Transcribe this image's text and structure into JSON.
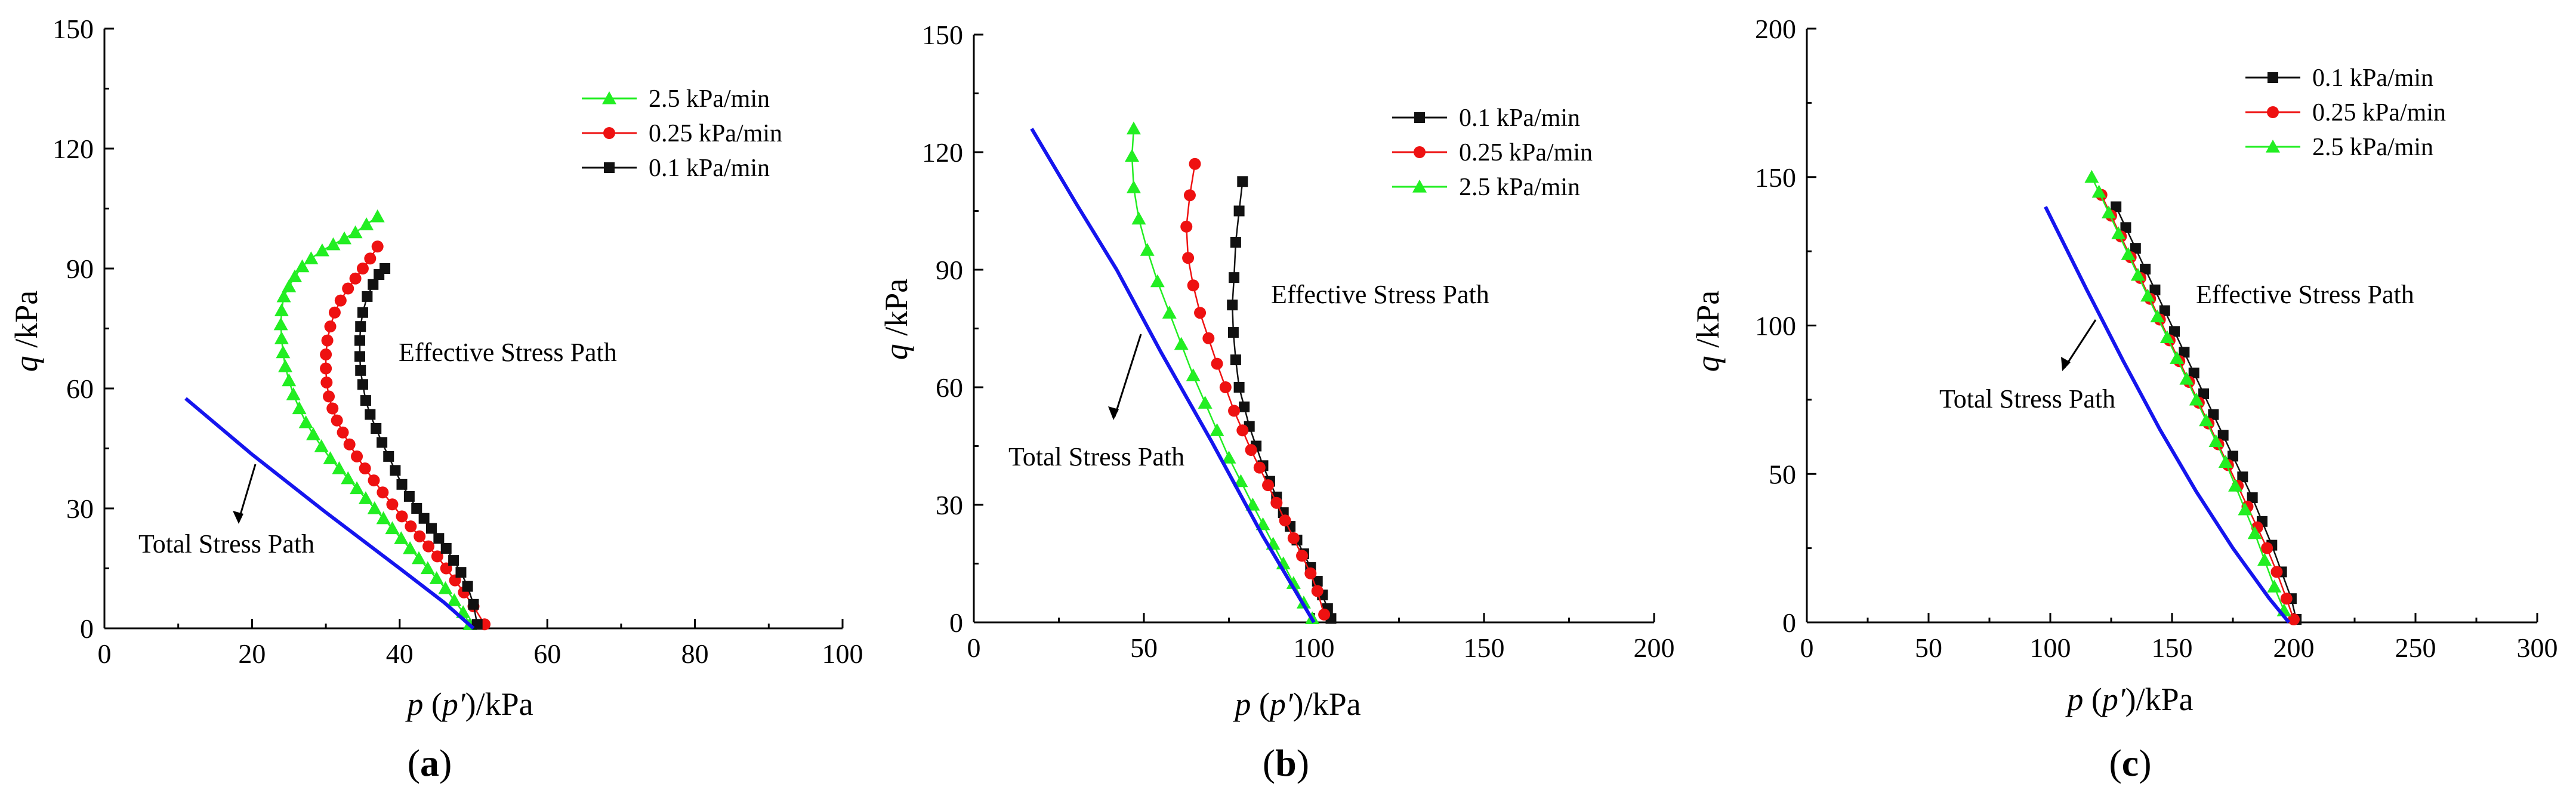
{
  "chart_data": [
    {
      "type": "line",
      "panel_label": "(a)",
      "panel_label_parts": [
        "(",
        "a",
        ")"
      ],
      "xlabel": "p (p′)/kPa",
      "xlabel_parts": {
        "var": "p",
        "mid": " (",
        "var2": "p′",
        "unit": ")/kPa"
      },
      "ylabel": "q /kPa",
      "ylabel_parts": {
        "var": "q",
        "unit": " /kPa"
      },
      "xlim": [
        0,
        100
      ],
      "ylim": [
        0,
        150
      ],
      "xticks": [
        0,
        20,
        40,
        60,
        80,
        100
      ],
      "yticks": [
        0,
        30,
        60,
        90,
        120,
        150
      ],
      "xtick_labels": [
        "0",
        "20",
        "40",
        "60",
        "80",
        "100"
      ],
      "ytick_labels": [
        "0",
        "30",
        "60",
        "90",
        "120",
        "150"
      ],
      "legend_position": "top-right",
      "annotations": [
        "Effective Stress Path",
        "Total Stress Path"
      ],
      "series": [
        {
          "name": "2.5 kPa/min",
          "color": "#22ee22",
          "marker": "triangle",
          "x": [
            37,
            35.5,
            34,
            32.5,
            31,
            29.5,
            28,
            26.8,
            25.8,
            25,
            24.3,
            24,
            23.9,
            24,
            24.2,
            24.5,
            25,
            25.6,
            26.4,
            27.3,
            28.3,
            29.4,
            30.6,
            31.8,
            33,
            34.2,
            35.4,
            36.6,
            37.8,
            39,
            40.2,
            41.4,
            42.6,
            43.8,
            45,
            46.2,
            47.4,
            48.6,
            49.5
          ],
          "y": [
            103,
            101,
            99,
            97.5,
            96,
            94.5,
            92.5,
            90.5,
            88,
            85.5,
            83,
            79.5,
            76,
            72.5,
            69,
            65.5,
            62,
            58.5,
            55,
            51.5,
            48.5,
            45.5,
            42.5,
            40,
            37.5,
            35,
            32.5,
            30,
            27.5,
            25,
            22.5,
            20,
            17.5,
            15,
            12.5,
            10,
            7,
            4,
            1
          ]
        },
        {
          "name": "0.25 kPa/min",
          "color": "#ee1111",
          "marker": "circle",
          "x": [
            37,
            36,
            35,
            34,
            33,
            32,
            31.2,
            30.6,
            30.2,
            30,
            30,
            30.1,
            30.4,
            30.9,
            31.5,
            32.3,
            33.2,
            34.2,
            35.3,
            36.5,
            37.7,
            39,
            40.3,
            41.5,
            42.7,
            43.9,
            45.1,
            46.3,
            47.5,
            48.7,
            50,
            51.5
          ],
          "y": [
            95.5,
            92.5,
            90,
            87.5,
            85,
            82,
            79,
            75.5,
            72,
            68.5,
            65,
            61.5,
            58,
            55,
            52,
            49,
            46,
            43,
            40,
            37,
            34,
            31,
            28,
            25.5,
            23,
            20.5,
            18,
            15,
            12,
            9,
            5.5,
            1
          ]
        },
        {
          "name": "0.1 kPa/min",
          "color": "#111111",
          "marker": "square",
          "x": [
            38,
            37.2,
            36.4,
            35.6,
            35,
            34.7,
            34.6,
            34.6,
            34.7,
            35,
            35.4,
            36,
            36.8,
            37.6,
            38.5,
            39.4,
            40.3,
            41.3,
            42.3,
            43.3,
            44.3,
            45.3,
            46.3,
            47.3,
            48.3,
            49.2,
            50,
            50.5
          ],
          "y": [
            90,
            88.5,
            86,
            83,
            79,
            75.5,
            72,
            68,
            64.5,
            61,
            57,
            53.5,
            50,
            46.5,
            43,
            39.5,
            36,
            33,
            30,
            27.5,
            25,
            22.5,
            20,
            17,
            14,
            10.5,
            6,
            1
          ]
        },
        {
          "name": "Total Stress Path",
          "color": "#1515ee",
          "marker": "none",
          "x": [
            11,
            20,
            30,
            40,
            46,
            50
          ],
          "y": [
            57.5,
            43.5,
            29,
            15,
            6.5,
            0
          ]
        }
      ]
    },
    {
      "type": "line",
      "panel_label": "(b)",
      "panel_label_parts": [
        "(",
        "b",
        ")"
      ],
      "xlabel": "p (p′)/kPa",
      "xlabel_parts": {
        "var": "p",
        "mid": " (",
        "var2": "p′",
        "unit": ")/kPa"
      },
      "ylabel": "q /kPa",
      "ylabel_parts": {
        "var": "q",
        "unit": " /kPa"
      },
      "xlim": [
        0,
        200
      ],
      "ylim": [
        0,
        150
      ],
      "xticks": [
        0,
        50,
        100,
        150,
        200
      ],
      "yticks": [
        0,
        30,
        60,
        90,
        120,
        150
      ],
      "xtick_labels": [
        "0",
        "50",
        "100",
        "150",
        "200"
      ],
      "ytick_labels": [
        "0",
        "30",
        "60",
        "90",
        "120",
        "150"
      ],
      "legend_position": "top-right",
      "annotations": [
        "Effective Stress Path",
        "Total Stress Path"
      ],
      "series": [
        {
          "name": "0.1  kPa/min",
          "color": "#111111",
          "marker": "square",
          "x": [
            79,
            78,
            77,
            76.5,
            76,
            76.3,
            77,
            78,
            79.5,
            81,
            83,
            85,
            87,
            89,
            91,
            93,
            95,
            97,
            99,
            101,
            102.5,
            104,
            105
          ],
          "y": [
            112.5,
            105,
            97,
            88,
            81,
            74,
            67,
            60,
            55,
            50,
            45,
            40,
            36,
            32,
            28,
            24.5,
            21,
            17.5,
            14,
            10.5,
            7,
            3.5,
            1
          ]
        },
        {
          "name": "0.25  kPa/min",
          "color": "#ee1111",
          "marker": "circle",
          "x": [
            65,
            63.5,
            62.5,
            63,
            64.5,
            66.5,
            69,
            71.5,
            74,
            76.5,
            79,
            81.5,
            84,
            86.5,
            89,
            91.5,
            94,
            96.5,
            99,
            101,
            103
          ],
          "y": [
            117,
            109,
            101,
            93,
            86,
            79,
            72.5,
            66,
            60,
            54,
            49,
            44,
            39.5,
            35,
            30.5,
            26,
            21.5,
            17,
            12.5,
            8,
            2
          ]
        },
        {
          "name": "2.5  kPa/min",
          "color": "#22ee22",
          "marker": "triangle",
          "x": [
            47,
            46.5,
            47,
            48.5,
            51,
            54,
            57.5,
            61,
            64.5,
            68,
            71.5,
            75,
            78.5,
            82,
            85,
            88,
            91,
            94,
            97,
            99.5
          ],
          "y": [
            126,
            119,
            111,
            103,
            95,
            87,
            79,
            71,
            63,
            56,
            49,
            42,
            36,
            30,
            25,
            20,
            15,
            10,
            5,
            1
          ]
        },
        {
          "name": "Total Stress Path",
          "color": "#1515ee",
          "marker": "none",
          "x": [
            17,
            30,
            42,
            55,
            70,
            85,
            100
          ],
          "y": [
            126,
            107,
            90,
            69,
            46,
            22,
            0
          ]
        }
      ]
    },
    {
      "type": "line",
      "panel_label": "(c)",
      "panel_label_parts": [
        "(",
        "c",
        ")"
      ],
      "xlabel": "p (p′)/kPa",
      "xlabel_parts": {
        "var": "p",
        "mid": " (",
        "var2": "p′",
        "unit": ")/kPa"
      },
      "ylabel": "q /kPa",
      "ylabel_parts": {
        "var": "q",
        "unit": " /kPa"
      },
      "xlim": [
        0,
        300
      ],
      "ylim": [
        0,
        200
      ],
      "xticks": [
        0,
        50,
        100,
        150,
        200,
        250,
        300
      ],
      "yticks": [
        0,
        50,
        100,
        150,
        200
      ],
      "xtick_labels": [
        "0",
        "50",
        "100",
        "150",
        "200",
        "250",
        "300"
      ],
      "ytick_labels": [
        "0",
        "50",
        "100",
        "150",
        "200"
      ],
      "legend_position": "top-right",
      "annotations": [
        "Effective Stress Path",
        "Total Stress Path"
      ],
      "series": [
        {
          "name": "0.1  kPa/min",
          "color": "#111111",
          "marker": "square",
          "x": [
            127,
            131,
            135,
            139,
            143,
            147,
            151,
            155,
            159,
            163,
            167,
            171,
            175,
            179,
            183,
            187,
            191,
            195,
            199,
            201
          ],
          "y": [
            140,
            133,
            126,
            119,
            112,
            105,
            98,
            91,
            84,
            77,
            70,
            63,
            56,
            49,
            42,
            34,
            26,
            17,
            8,
            1
          ]
        },
        {
          "name": "0.25  kPa/min",
          "color": "#ee1111",
          "marker": "circle",
          "x": [
            121,
            125,
            129,
            133,
            137,
            141,
            145,
            149,
            153,
            157,
            161,
            165,
            169,
            173,
            177,
            181,
            185,
            189,
            193,
            197,
            200
          ],
          "y": [
            144,
            137,
            130,
            123,
            116,
            109,
            102,
            95,
            88,
            81,
            74,
            67,
            60,
            53,
            46,
            39,
            32,
            25,
            17,
            8,
            1
          ]
        },
        {
          "name": "2.5  kPa/min",
          "color": "#22ee22",
          "marker": "triangle",
          "x": [
            117,
            120,
            124,
            128,
            132,
            136,
            140,
            144,
            148,
            152,
            156,
            160,
            164,
            168,
            172,
            176,
            180,
            184,
            188,
            192,
            196
          ],
          "y": [
            150,
            145,
            138,
            131,
            124,
            117,
            110,
            103,
            96,
            89,
            82,
            75,
            68,
            61,
            54,
            46,
            38,
            30,
            21,
            12,
            4
          ]
        },
        {
          "name": "Total Stress Path",
          "color": "#1515ee",
          "marker": "none",
          "x": [
            98,
            115,
            130,
            145,
            160,
            175,
            190,
            198
          ],
          "y": [
            140,
            112,
            88,
            65,
            44,
            25,
            8,
            0
          ]
        }
      ]
    }
  ]
}
